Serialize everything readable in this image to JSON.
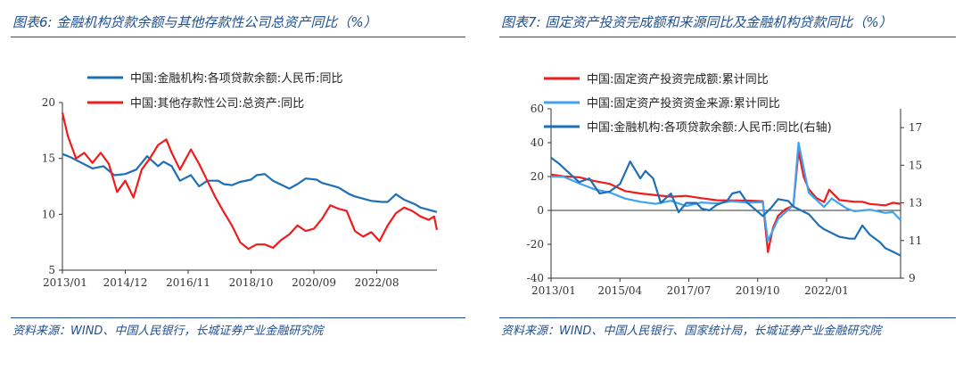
{
  "left": {
    "figure_title": "图表6:  金融机构贷款余额与其他存款性公司总资产同比（%）",
    "source": "资料来源：WIND、中国人民银行，长城证券产业金融研究院",
    "colors": {
      "loan": "#1f6fb5",
      "assets": "#ee1c1c"
    }
  },
  "right": {
    "figure_title": "图表7:  固定资产投资完成额和来源同比及金融机构贷款同比（%）",
    "source": "资料来源：WIND、中国人民银行、国家统计局，长城证券产业金融研究院",
    "colors": {
      "completed": "#ee1c1c",
      "funding": "#3fa3f0",
      "loan": "#1f6fb5"
    }
  },
  "chart_data": [
    {
      "type": "line",
      "title": "",
      "xlabel": "",
      "ylabel": "",
      "x_range": [
        "2013-01",
        "2024-06"
      ],
      "x_ticks": [
        "2013/01",
        "2014/12",
        "2016/11",
        "2018/10",
        "2020/09",
        "2022/08"
      ],
      "ylim": [
        5,
        20
      ],
      "y_ticks": [
        5,
        10,
        15,
        20
      ],
      "grid": false,
      "legend": "top",
      "series": [
        {
          "name": "中国:金融机构:各项贷款余额:人民币:同比",
          "key": "loan",
          "points": [
            [
              "2013-01",
              15.4
            ],
            [
              "2013-04",
              15.1
            ],
            [
              "2013-08",
              14.6
            ],
            [
              "2013-12",
              14.1
            ],
            [
              "2014-04",
              14.3
            ],
            [
              "2014-08",
              13.5
            ],
            [
              "2014-12",
              13.6
            ],
            [
              "2015-04",
              14.0
            ],
            [
              "2015-08",
              15.2
            ],
            [
              "2015-12",
              14.3
            ],
            [
              "2016-02",
              14.7
            ],
            [
              "2016-05",
              14.3
            ],
            [
              "2016-08",
              13.0
            ],
            [
              "2016-12",
              13.5
            ],
            [
              "2017-03",
              12.5
            ],
            [
              "2017-06",
              13.0
            ],
            [
              "2017-10",
              13.0
            ],
            [
              "2017-12",
              12.7
            ],
            [
              "2018-03",
              12.6
            ],
            [
              "2018-06",
              12.9
            ],
            [
              "2018-10",
              13.1
            ],
            [
              "2018-12",
              13.5
            ],
            [
              "2019-03",
              13.6
            ],
            [
              "2019-06",
              13.0
            ],
            [
              "2019-12",
              12.3
            ],
            [
              "2020-03",
              12.7
            ],
            [
              "2020-06",
              13.2
            ],
            [
              "2020-10",
              13.1
            ],
            [
              "2020-12",
              12.8
            ],
            [
              "2021-03",
              12.6
            ],
            [
              "2021-06",
              12.4
            ],
            [
              "2021-10",
              11.8
            ],
            [
              "2021-12",
              11.6
            ],
            [
              "2022-03",
              11.4
            ],
            [
              "2022-06",
              11.2
            ],
            [
              "2022-10",
              11.1
            ],
            [
              "2022-12",
              11.1
            ],
            [
              "2023-03",
              11.8
            ],
            [
              "2023-06",
              11.3
            ],
            [
              "2023-10",
              10.9
            ],
            [
              "2023-12",
              10.6
            ],
            [
              "2024-03",
              10.4
            ],
            [
              "2024-06",
              10.2
            ]
          ]
        },
        {
          "name": "中国:其他存款性公司:总资产:同比",
          "key": "assets",
          "points": [
            [
              "2013-01",
              19.1
            ],
            [
              "2013-03",
              17.0
            ],
            [
              "2013-06",
              15.0
            ],
            [
              "2013-09",
              15.5
            ],
            [
              "2013-12",
              14.6
            ],
            [
              "2014-03",
              15.5
            ],
            [
              "2014-06",
              14.5
            ],
            [
              "2014-09",
              12.0
            ],
            [
              "2014-12",
              13.0
            ],
            [
              "2015-03",
              11.5
            ],
            [
              "2015-06",
              14.0
            ],
            [
              "2015-09",
              15.0
            ],
            [
              "2015-12",
              16.2
            ],
            [
              "2016-03",
              16.7
            ],
            [
              "2016-05",
              15.5
            ],
            [
              "2016-08",
              14.0
            ],
            [
              "2016-12",
              15.8
            ],
            [
              "2017-03",
              14.5
            ],
            [
              "2017-06",
              13.0
            ],
            [
              "2017-09",
              11.5
            ],
            [
              "2017-12",
              10.2
            ],
            [
              "2018-03",
              9.0
            ],
            [
              "2018-06",
              7.5
            ],
            [
              "2018-09",
              6.9
            ],
            [
              "2018-12",
              7.3
            ],
            [
              "2019-03",
              7.3
            ],
            [
              "2019-06",
              7.0
            ],
            [
              "2019-09",
              7.7
            ],
            [
              "2019-12",
              8.2
            ],
            [
              "2020-03",
              9.0
            ],
            [
              "2020-06",
              8.5
            ],
            [
              "2020-09",
              8.7
            ],
            [
              "2020-12",
              9.6
            ],
            [
              "2021-03",
              10.8
            ],
            [
              "2021-06",
              10.5
            ],
            [
              "2021-09",
              10.3
            ],
            [
              "2021-12",
              8.5
            ],
            [
              "2022-03",
              8.0
            ],
            [
              "2022-06",
              8.4
            ],
            [
              "2022-09",
              7.6
            ],
            [
              "2022-12",
              9.0
            ],
            [
              "2023-03",
              10.1
            ],
            [
              "2023-06",
              10.6
            ],
            [
              "2023-09",
              10.3
            ],
            [
              "2023-12",
              9.8
            ],
            [
              "2024-03",
              9.5
            ],
            [
              "2024-05",
              9.8
            ],
            [
              "2024-06",
              8.6
            ]
          ]
        }
      ]
    },
    {
      "type": "line",
      "title": "",
      "xlabel": "",
      "ylabel": "",
      "x_range": [
        "2013-01",
        "2024-06"
      ],
      "x_ticks": [
        "2013/01",
        "2015/04",
        "2017/07",
        "2019/10",
        "2022/01"
      ],
      "ylim": [
        -40,
        60
      ],
      "y_ticks": [
        -40,
        -20,
        0,
        20,
        40,
        60
      ],
      "y2lim": [
        9,
        18
      ],
      "y2_ticks": [
        9,
        11,
        13,
        15,
        17
      ],
      "grid": false,
      "legend": "top",
      "series": [
        {
          "name": "中国:固定资产投资完成额:累计同比",
          "key": "completed",
          "axis": "left",
          "points": [
            [
              "2013-01",
              21.2
            ],
            [
              "2013-06",
              20.1
            ],
            [
              "2013-12",
              19.6
            ],
            [
              "2014-06",
              17.3
            ],
            [
              "2014-12",
              15.7
            ],
            [
              "2015-06",
              11.4
            ],
            [
              "2015-12",
              10.0
            ],
            [
              "2016-06",
              9.0
            ],
            [
              "2016-12",
              8.1
            ],
            [
              "2017-06",
              8.6
            ],
            [
              "2017-12",
              7.2
            ],
            [
              "2018-06",
              6.0
            ],
            [
              "2018-12",
              5.9
            ],
            [
              "2019-06",
              5.8
            ],
            [
              "2019-12",
              5.4
            ],
            [
              "2020-02",
              -24.5
            ],
            [
              "2020-04",
              -10.3
            ],
            [
              "2020-06",
              -3.1
            ],
            [
              "2020-09",
              0.8
            ],
            [
              "2020-12",
              2.9
            ],
            [
              "2021-02",
              35.0
            ],
            [
              "2021-04",
              19.9
            ],
            [
              "2021-06",
              12.6
            ],
            [
              "2021-09",
              7.3
            ],
            [
              "2021-12",
              4.9
            ],
            [
              "2022-02",
              12.2
            ],
            [
              "2022-06",
              6.1
            ],
            [
              "2022-12",
              5.1
            ],
            [
              "2023-03",
              5.1
            ],
            [
              "2023-06",
              3.8
            ],
            [
              "2023-12",
              3.0
            ],
            [
              "2024-03",
              4.5
            ],
            [
              "2024-06",
              3.9
            ]
          ]
        },
        {
          "name": "中国:固定资产投资资金来源:累计同比",
          "key": "funding",
          "axis": "left",
          "points": [
            [
              "2013-01",
              20.0
            ],
            [
              "2013-06",
              19.8
            ],
            [
              "2013-12",
              16.0
            ],
            [
              "2014-06",
              12.5
            ],
            [
              "2014-12",
              10.6
            ],
            [
              "2015-06",
              7.0
            ],
            [
              "2015-12",
              5.1
            ],
            [
              "2016-06",
              3.9
            ],
            [
              "2016-12",
              5.7
            ],
            [
              "2017-06",
              2.6
            ],
            [
              "2017-12",
              4.7
            ],
            [
              "2018-06",
              4.1
            ],
            [
              "2018-12",
              5.5
            ],
            [
              "2019-06",
              4.5
            ],
            [
              "2019-12",
              4.9
            ],
            [
              "2020-02",
              -18.0
            ],
            [
              "2020-06",
              -5.0
            ],
            [
              "2020-12",
              3.2
            ],
            [
              "2021-02",
              40.0
            ],
            [
              "2021-06",
              10.4
            ],
            [
              "2021-12",
              2.0
            ],
            [
              "2022-03",
              7.0
            ],
            [
              "2022-09",
              1.0
            ],
            [
              "2022-12",
              -0.5
            ],
            [
              "2023-06",
              0.4
            ],
            [
              "2023-12",
              -1.5
            ],
            [
              "2024-03",
              -1.0
            ],
            [
              "2024-06",
              -5.8
            ]
          ]
        },
        {
          "name": "中国:金融机构:各项贷款余额:人民币:同比(右轴)",
          "key": "loan",
          "axis": "right",
          "points": [
            [
              "2013-01",
              15.4
            ],
            [
              "2013-04",
              15.1
            ],
            [
              "2013-08",
              14.6
            ],
            [
              "2013-12",
              14.1
            ],
            [
              "2014-04",
              14.3
            ],
            [
              "2014-08",
              13.5
            ],
            [
              "2014-12",
              13.6
            ],
            [
              "2015-04",
              14.0
            ],
            [
              "2015-08",
              15.2
            ],
            [
              "2015-12",
              14.3
            ],
            [
              "2016-02",
              14.7
            ],
            [
              "2016-05",
              14.3
            ],
            [
              "2016-08",
              13.0
            ],
            [
              "2016-12",
              13.5
            ],
            [
              "2017-03",
              12.5
            ],
            [
              "2017-06",
              13.0
            ],
            [
              "2017-10",
              13.0
            ],
            [
              "2017-12",
              12.7
            ],
            [
              "2018-03",
              12.6
            ],
            [
              "2018-06",
              12.9
            ],
            [
              "2018-10",
              13.1
            ],
            [
              "2018-12",
              13.5
            ],
            [
              "2019-03",
              13.6
            ],
            [
              "2019-06",
              13.0
            ],
            [
              "2019-12",
              12.3
            ],
            [
              "2020-03",
              12.7
            ],
            [
              "2020-06",
              13.2
            ],
            [
              "2020-10",
              13.1
            ],
            [
              "2020-12",
              12.8
            ],
            [
              "2021-03",
              12.6
            ],
            [
              "2021-06",
              12.4
            ],
            [
              "2021-10",
              11.8
            ],
            [
              "2021-12",
              11.6
            ],
            [
              "2022-03",
              11.4
            ],
            [
              "2022-06",
              11.2
            ],
            [
              "2022-10",
              11.1
            ],
            [
              "2022-12",
              11.1
            ],
            [
              "2023-03",
              11.8
            ],
            [
              "2023-06",
              11.3
            ],
            [
              "2023-10",
              10.9
            ],
            [
              "2023-12",
              10.6
            ],
            [
              "2024-03",
              10.4
            ],
            [
              "2024-06",
              10.2
            ]
          ]
        }
      ]
    }
  ]
}
